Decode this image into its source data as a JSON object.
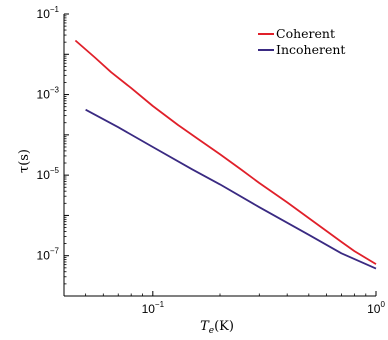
{
  "chart_data": {
    "type": "line",
    "xscale": "log",
    "yscale": "log",
    "xlim": [
      0.04,
      1
    ],
    "ylim": [
      1e-08,
      0.1
    ],
    "x_ticks": [
      {
        "base": "10",
        "exp": "−1"
      },
      {
        "base": "10",
        "exp": "0"
      }
    ],
    "y_ticks": [
      {
        "base": "10",
        "exp": "−1"
      },
      {
        "base": "10",
        "exp": "−3"
      },
      {
        "base": "10",
        "exp": "−5"
      },
      {
        "base": "10",
        "exp": "−7"
      }
    ],
    "xlabel": {
      "main": "T",
      "sub": "e",
      "rest": "(K)"
    },
    "ylabel": "τ(s)",
    "legend_position": "top-right",
    "series": [
      {
        "name": "Coherent",
        "color": "#e0202a",
        "x": [
          0.045,
          0.055,
          0.065,
          0.08,
          0.1,
          0.13,
          0.16,
          0.2,
          0.25,
          0.3,
          0.4,
          0.5,
          0.6,
          0.7,
          0.8,
          0.9,
          1.0
        ],
        "y": [
          0.022,
          0.0083,
          0.0036,
          0.00145,
          0.00052,
          0.000175,
          7.8e-05,
          3.3e-05,
          1.35e-05,
          6.4e-06,
          2.1e-06,
          8.6e-07,
          4.1e-07,
          2.2e-07,
          1.3e-07,
          8.8e-08,
          6.2e-08
        ]
      },
      {
        "name": "Incoherent",
        "color": "#3a2a82",
        "x": [
          0.05,
          0.07,
          0.1,
          0.15,
          0.2,
          0.3,
          0.5,
          0.7,
          1.0
        ],
        "y": [
          0.00042,
          0.000155,
          5e-05,
          1.4e-05,
          5.9e-06,
          1.6e-06,
          3.3e-07,
          1.15e-07,
          4.8e-08
        ]
      }
    ]
  }
}
